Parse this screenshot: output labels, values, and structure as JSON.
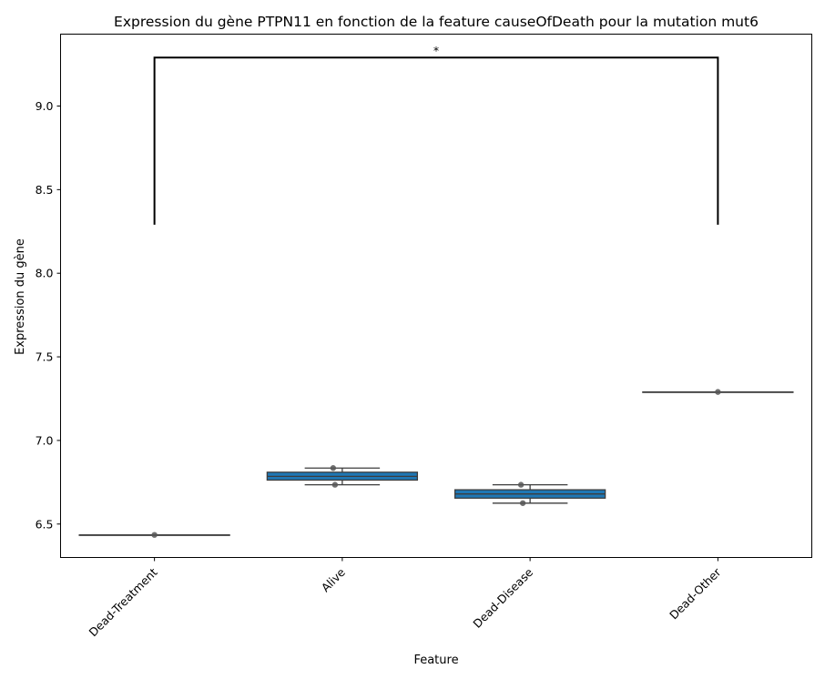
{
  "chart_data": {
    "type": "box",
    "title": "Expression du gène PTPN11 en fonction de la feature causeOfDeath pour la mutation mut6",
    "xlabel": "Feature",
    "ylabel": "Expression du gène",
    "categories": [
      "Dead-Treatment",
      "Alive",
      "Dead-Disease",
      "Dead-Other"
    ],
    "ylim": [
      6.3,
      9.43
    ],
    "yticks": [
      "6.5",
      "7.0",
      "7.5",
      "8.0",
      "8.5",
      "9.0"
    ],
    "box_color": "#1f77b4",
    "boxes": [
      {
        "category": "Dead-Treatment",
        "q1": 6.435,
        "median": 6.435,
        "q3": 6.435,
        "whisker_low": 6.435,
        "whisker_high": 6.435,
        "points": [
          6.435
        ]
      },
      {
        "category": "Alive",
        "q1": 6.763,
        "median": 6.785,
        "q3": 6.81,
        "whisker_low": 6.735,
        "whisker_high": 6.835,
        "points": [
          6.835,
          6.735
        ]
      },
      {
        "category": "Dead-Disease",
        "q1": 6.655,
        "median": 6.68,
        "q3": 6.705,
        "whisker_low": 6.625,
        "whisker_high": 6.735,
        "points": [
          6.735,
          6.625
        ]
      },
      {
        "category": "Dead-Other",
        "q1": 7.29,
        "median": 7.29,
        "q3": 7.29,
        "whisker_low": 7.29,
        "whisker_high": 7.29,
        "points": [
          7.29
        ]
      }
    ],
    "annotation": {
      "from": "Dead-Treatment",
      "to": "Dead-Other",
      "text": "*",
      "bottom": 8.29,
      "top": 9.29
    },
    "grid": false,
    "legend": "none"
  }
}
